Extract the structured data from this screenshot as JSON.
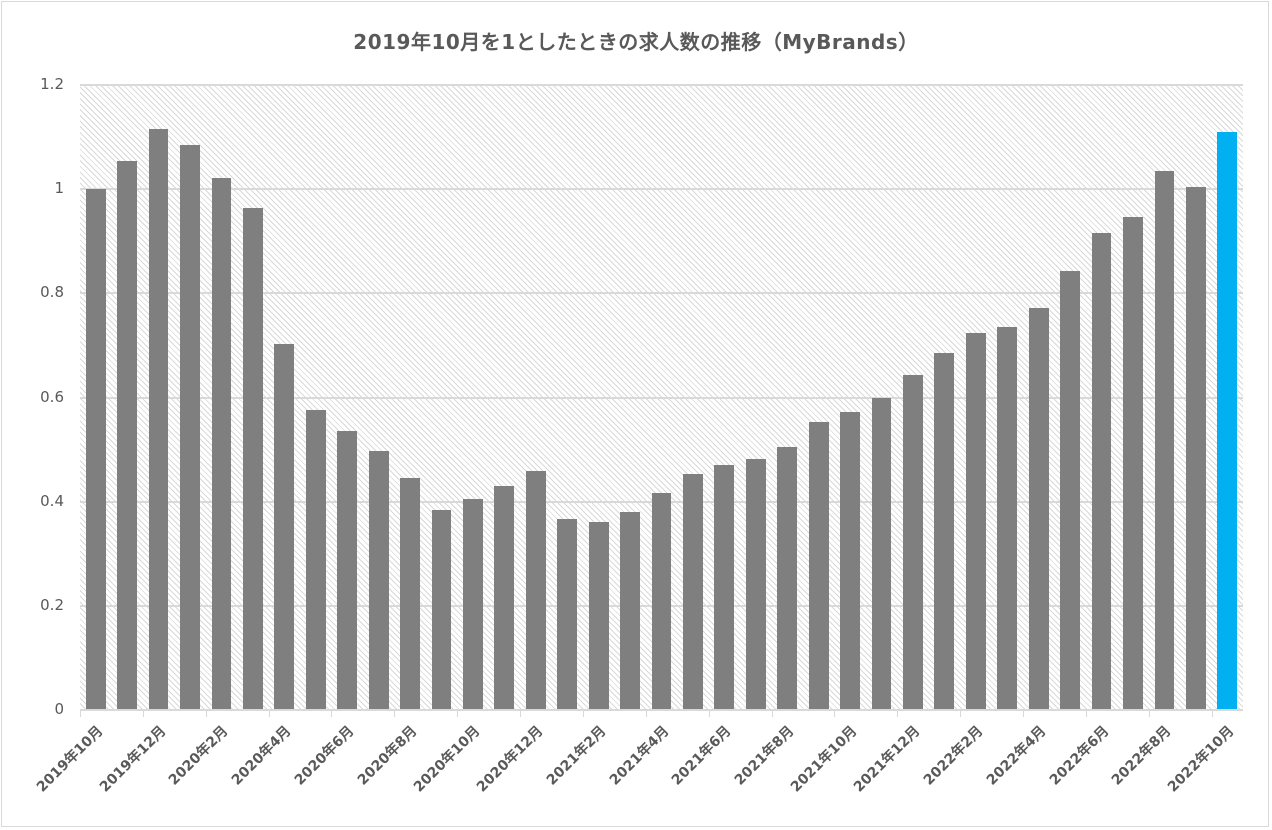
{
  "chart_data": {
    "type": "bar",
    "title": "2019年10月を1としたときの求人数の推移（MyBrands）",
    "xlabel": "",
    "ylabel": "",
    "ylim": [
      0,
      1.2
    ],
    "yticks": [
      "0",
      "0.2",
      "0.4",
      "0.6",
      "0.8",
      "1",
      "1.2"
    ],
    "grid": true,
    "legend": null,
    "bar_color": "#7f7f7f",
    "highlight_color": "#00b0f0",
    "highlight_index": 36,
    "categories": [
      "2019年10月",
      "2019年11月",
      "2019年12月",
      "2020年1月",
      "2020年2月",
      "2020年3月",
      "2020年4月",
      "2020年5月",
      "2020年6月",
      "2020年7月",
      "2020年8月",
      "2020年9月",
      "2020年10月",
      "2020年11月",
      "2020年12月",
      "2021年1月",
      "2021年2月",
      "2021年3月",
      "2021年4月",
      "2021年5月",
      "2021年6月",
      "2021年7月",
      "2021年8月",
      "2021年9月",
      "2021年10月",
      "2021年11月",
      "2021年12月",
      "2022年1月",
      "2022年2月",
      "2022年3月",
      "2022年4月",
      "2022年5月",
      "2022年6月",
      "2022年7月",
      "2022年8月",
      "2022年9月",
      "2022年10月"
    ],
    "x_tick_labels": [
      "2019年10月",
      "2019年12月",
      "2020年2月",
      "2020年4月",
      "2020年6月",
      "2020年8月",
      "2020年10月",
      "2020年12月",
      "2021年2月",
      "2021年4月",
      "2021年6月",
      "2021年8月",
      "2021年10月",
      "2021年12月",
      "2022年2月",
      "2022年4月",
      "2022年6月",
      "2022年8月",
      "2022年10月"
    ],
    "values": [
      1.0,
      1.054,
      1.115,
      1.085,
      1.021,
      0.964,
      0.703,
      0.576,
      0.536,
      0.497,
      0.445,
      0.384,
      0.405,
      0.43,
      0.459,
      0.367,
      0.361,
      0.38,
      0.417,
      0.453,
      0.47,
      0.482,
      0.505,
      0.553,
      0.572,
      0.599,
      0.643,
      0.685,
      0.724,
      0.735,
      0.772,
      0.843,
      0.916,
      0.947,
      1.035,
      1.004,
      1.11
    ]
  }
}
